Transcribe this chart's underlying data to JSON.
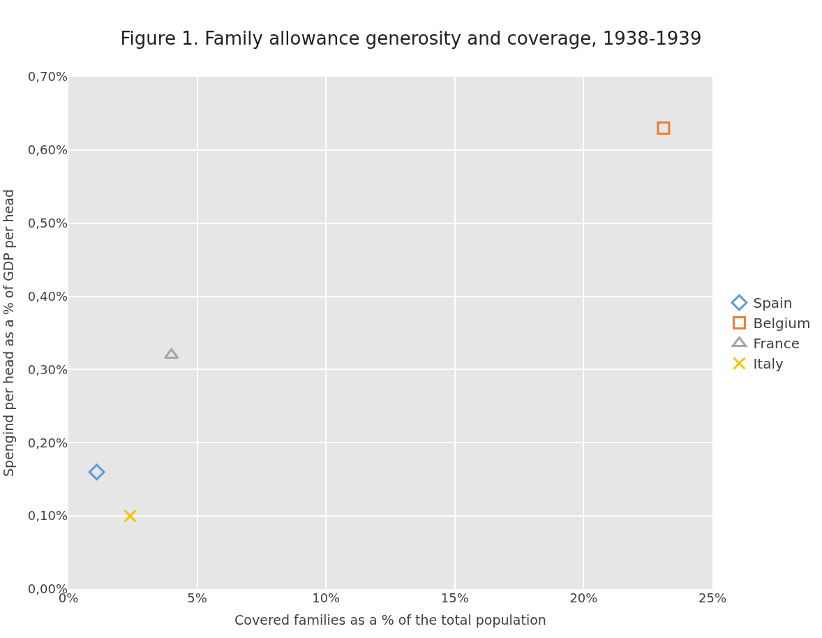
{
  "chart_data": {
    "type": "scatter",
    "title": "Figure 1. Family allowance generosity and coverage, 1938-1939",
    "xlabel": "Covered families as a % of the total population",
    "ylabel": "Spengind per head as a % of GDP per head",
    "series": [
      {
        "name": "Spain",
        "color": "#5b9bd5",
        "marker": "diamond",
        "x": [
          1.1
        ],
        "values": [
          0.16
        ]
      },
      {
        "name": "Belgium",
        "color": "#ed7d31",
        "marker": "square",
        "x": [
          23.1
        ],
        "values": [
          0.63
        ]
      },
      {
        "name": "France",
        "color": "#a5a5a5",
        "marker": "triangle",
        "x": [
          4.0
        ],
        "values": [
          0.32
        ]
      },
      {
        "name": "Italy",
        "color": "#ffc000",
        "marker": "cross",
        "x": [
          2.4
        ],
        "values": [
          0.1
        ]
      }
    ],
    "xlim": [
      0,
      25
    ],
    "xticks": [
      {
        "value": 0,
        "label": "0%"
      },
      {
        "value": 5,
        "label": "5%"
      },
      {
        "value": 10,
        "label": "10%"
      },
      {
        "value": 15,
        "label": "15%"
      },
      {
        "value": 20,
        "label": "20%"
      },
      {
        "value": 25,
        "label": "25%"
      }
    ],
    "ylim": [
      0,
      0.7
    ],
    "yticks": [
      {
        "value": 0,
        "label": "0,00%"
      },
      {
        "value": 0.1,
        "label": "0,10%"
      },
      {
        "value": 0.2,
        "label": "0,20%"
      },
      {
        "value": 0.3,
        "label": "0,30%"
      },
      {
        "value": 0.4,
        "label": "0,40%"
      },
      {
        "value": 0.5,
        "label": "0,50%"
      },
      {
        "value": 0.6,
        "label": "0,60%"
      },
      {
        "value": 0.7,
        "label": "0,70%"
      }
    ],
    "grid": true,
    "legend": "right"
  }
}
